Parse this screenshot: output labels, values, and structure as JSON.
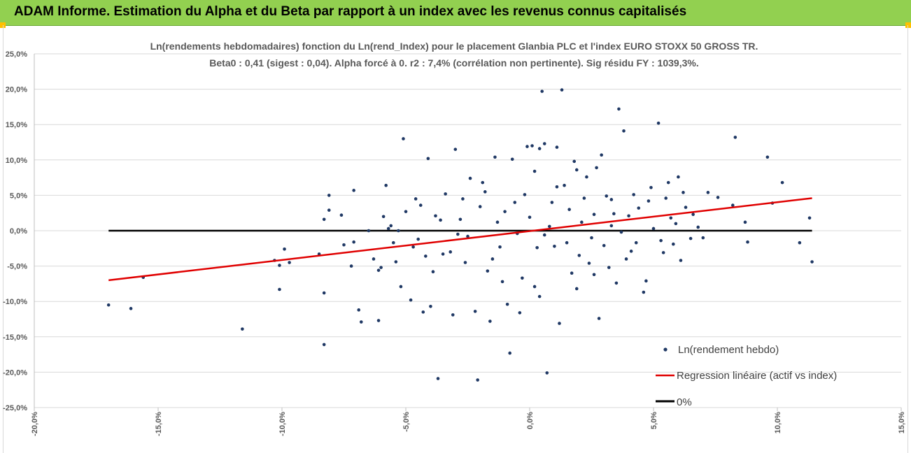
{
  "header": {
    "title": "ADAM Informe. Estimation du Alpha et du Beta par rapport à un index avec les revenus connus capitalisés"
  },
  "colors": {
    "header_bg": "#92d050",
    "points": "#1f3864",
    "regression": "#e00000",
    "zero_line": "#000000",
    "grid": "#d9d9d9"
  },
  "chart_data": {
    "type": "scatter",
    "title": "Ln(rendements hebdomadaires) fonction du Ln(rend_Index) pour le placement Glanbia PLC et l'index EURO STOXX 50 GROSS TR.",
    "subtitle": "Beta0 : 0,41  (sigest : 0,04).  Alpha forcé à 0. r2 : 7,4% (corrélation non pertinente). Sig résidu FY : 1039,3%.",
    "xlim": [
      -0.2,
      0.15
    ],
    "ylim": [
      -0.25,
      0.25
    ],
    "x_ticks": [
      -0.2,
      -0.15,
      -0.1,
      -0.05,
      0.0,
      0.05,
      0.1,
      0.15
    ],
    "x_tick_labels": [
      "-20,0%",
      "-15,0%",
      "-10,0%",
      "-5,0%",
      "0,0%",
      "5,0%",
      "10,0%",
      "15,0%"
    ],
    "y_ticks": [
      0.25,
      0.2,
      0.15,
      0.1,
      0.05,
      0.0,
      -0.05,
      -0.1,
      -0.15,
      -0.2,
      -0.25
    ],
    "y_tick_labels": [
      "25,0%",
      "20,0%",
      "15,0%",
      "10,0%",
      "5,0%",
      "0,0%",
      "-5,0%",
      "-10,0%",
      "-15,0%",
      "-20,0%",
      "-25,0%"
    ],
    "grid": "horizontal",
    "legend_position": "bottom-right",
    "legend": [
      {
        "label": "Ln(rendement hebdo)",
        "kind": "marker"
      },
      {
        "label": "Regression linéaire (actif vs index)",
        "kind": "line"
      },
      {
        "label": "0%",
        "kind": "line"
      }
    ],
    "series": [
      {
        "name": "Ln(rendement hebdo)",
        "type": "scatter",
        "points": [
          [
            -0.17,
            -0.105
          ],
          [
            -0.161,
            -0.11
          ],
          [
            -0.156,
            -0.066
          ],
          [
            -0.116,
            -0.139
          ],
          [
            -0.103,
            -0.042
          ],
          [
            -0.101,
            -0.083
          ],
          [
            -0.101,
            -0.049
          ],
          [
            -0.099,
            -0.026
          ],
          [
            -0.097,
            -0.045
          ],
          [
            -0.085,
            -0.033
          ],
          [
            -0.083,
            0.016
          ],
          [
            -0.083,
            -0.088
          ],
          [
            -0.083,
            -0.161
          ],
          [
            -0.081,
            0.05
          ],
          [
            -0.081,
            0.029
          ],
          [
            -0.076,
            0.022
          ],
          [
            -0.075,
            -0.02
          ],
          [
            -0.072,
            -0.05
          ],
          [
            -0.071,
            0.057
          ],
          [
            -0.071,
            -0.016
          ],
          [
            -0.069,
            -0.112
          ],
          [
            -0.068,
            -0.129
          ],
          [
            -0.065,
            0.0
          ],
          [
            -0.063,
            -0.04
          ],
          [
            -0.061,
            -0.056
          ],
          [
            -0.061,
            -0.127
          ],
          [
            -0.06,
            -0.052
          ],
          [
            -0.059,
            0.02
          ],
          [
            -0.058,
            0.064
          ],
          [
            -0.057,
            0.003
          ],
          [
            -0.056,
            0.007
          ],
          [
            -0.055,
            -0.017
          ],
          [
            -0.054,
            -0.044
          ],
          [
            -0.053,
            0.0
          ],
          [
            -0.052,
            -0.079
          ],
          [
            -0.051,
            0.13
          ],
          [
            -0.05,
            0.027
          ],
          [
            -0.048,
            -0.098
          ],
          [
            -0.047,
            -0.023
          ],
          [
            -0.046,
            0.045
          ],
          [
            -0.045,
            -0.012
          ],
          [
            -0.043,
            -0.115
          ],
          [
            -0.042,
            -0.036
          ],
          [
            -0.041,
            0.102
          ],
          [
            -0.04,
            -0.107
          ],
          [
            -0.038,
            0.021
          ],
          [
            -0.037,
            -0.209
          ],
          [
            -0.036,
            0.015
          ],
          [
            -0.034,
            0.052
          ],
          [
            -0.032,
            -0.03
          ],
          [
            -0.031,
            -0.119
          ],
          [
            -0.03,
            0.115
          ],
          [
            -0.029,
            -0.005
          ],
          [
            -0.028,
            0.016
          ],
          [
            -0.026,
            -0.045
          ],
          [
            -0.024,
            0.074
          ],
          [
            -0.022,
            -0.114
          ],
          [
            -0.021,
            -0.211
          ],
          [
            -0.02,
            0.034
          ],
          [
            -0.019,
            0.068
          ],
          [
            -0.017,
            -0.057
          ],
          [
            -0.016,
            -0.128
          ],
          [
            -0.014,
            0.104
          ],
          [
            -0.012,
            -0.023
          ],
          [
            -0.011,
            -0.072
          ],
          [
            -0.01,
            0.027
          ],
          [
            -0.009,
            -0.104
          ],
          [
            -0.008,
            -0.173
          ],
          [
            -0.007,
            0.101
          ],
          [
            -0.006,
            0.04
          ],
          [
            -0.005,
            -0.004
          ],
          [
            -0.004,
            -0.116
          ],
          [
            -0.003,
            -0.067
          ],
          [
            -0.002,
            0.051
          ],
          [
            -0.001,
            0.119
          ],
          [
            0.0,
            0.019
          ],
          [
            0.001,
            0.12
          ],
          [
            0.002,
            -0.079
          ],
          [
            0.003,
            -0.024
          ],
          [
            0.004,
            0.116
          ],
          [
            0.005,
            0.197
          ],
          [
            0.006,
            0.123
          ],
          [
            0.007,
            -0.201
          ],
          [
            0.008,
            0.006
          ],
          [
            0.009,
            0.04
          ],
          [
            0.01,
            -0.022
          ],
          [
            0.011,
            0.118
          ],
          [
            0.012,
            -0.131
          ],
          [
            0.013,
            0.199
          ],
          [
            0.014,
            0.064
          ],
          [
            0.015,
            -0.017
          ],
          [
            0.016,
            0.03
          ],
          [
            0.017,
            -0.06
          ],
          [
            0.018,
            0.098
          ],
          [
            0.019,
            0.086
          ],
          [
            0.02,
            -0.035
          ],
          [
            0.021,
            0.012
          ],
          [
            0.022,
            0.046
          ],
          [
            0.023,
            0.076
          ],
          [
            0.024,
            -0.046
          ],
          [
            0.025,
            -0.01
          ],
          [
            0.026,
            0.023
          ],
          [
            0.027,
            0.089
          ],
          [
            0.028,
            -0.124
          ],
          [
            0.029,
            0.107
          ],
          [
            0.03,
            -0.021
          ],
          [
            0.031,
            0.049
          ],
          [
            0.032,
            -0.052
          ],
          [
            0.033,
            0.007
          ],
          [
            0.034,
            0.024
          ],
          [
            0.035,
            -0.074
          ],
          [
            0.036,
            0.172
          ],
          [
            0.038,
            0.141
          ],
          [
            0.039,
            -0.04
          ],
          [
            0.04,
            0.021
          ],
          [
            0.042,
            0.051
          ],
          [
            0.043,
            -0.017
          ],
          [
            0.044,
            0.032
          ],
          [
            0.046,
            -0.087
          ],
          [
            0.047,
            -0.071
          ],
          [
            0.048,
            0.042
          ],
          [
            0.05,
            0.003
          ],
          [
            0.052,
            0.152
          ],
          [
            0.053,
            -0.014
          ],
          [
            0.054,
            -0.031
          ],
          [
            0.055,
            0.046
          ],
          [
            0.056,
            0.068
          ],
          [
            0.058,
            -0.019
          ],
          [
            0.059,
            0.01
          ],
          [
            0.06,
            0.076
          ],
          [
            0.062,
            0.054
          ],
          [
            0.063,
            0.033
          ],
          [
            0.065,
            -0.011
          ],
          [
            0.066,
            0.023
          ],
          [
            0.068,
            0.005
          ],
          [
            0.07,
            -0.01
          ],
          [
            0.072,
            0.054
          ],
          [
            0.076,
            0.047
          ],
          [
            0.082,
            0.036
          ],
          [
            0.083,
            0.132
          ],
          [
            0.087,
            0.012
          ],
          [
            0.088,
            -0.016
          ],
          [
            0.096,
            0.104
          ],
          [
            0.098,
            0.039
          ],
          [
            0.102,
            0.068
          ],
          [
            0.109,
            -0.017
          ],
          [
            0.113,
            0.018
          ],
          [
            0.114,
            -0.044
          ],
          [
            -0.044,
            0.036
          ],
          [
            -0.039,
            -0.058
          ],
          [
            -0.035,
            -0.033
          ],
          [
            -0.027,
            0.045
          ],
          [
            -0.025,
            -0.008
          ],
          [
            -0.018,
            0.055
          ],
          [
            -0.015,
            -0.04
          ],
          [
            -0.013,
            0.012
          ],
          [
            0.002,
            0.084
          ],
          [
            0.004,
            -0.093
          ],
          [
            0.006,
            -0.006
          ],
          [
            0.011,
            0.062
          ],
          [
            0.019,
            -0.082
          ],
          [
            0.026,
            -0.062
          ],
          [
            0.033,
            0.044
          ],
          [
            0.037,
            -0.002
          ],
          [
            0.041,
            -0.029
          ],
          [
            0.049,
            0.061
          ],
          [
            0.057,
            0.018
          ],
          [
            0.061,
            -0.042
          ]
        ]
      },
      {
        "name": "Regression linéaire (actif vs index)",
        "type": "line",
        "points": [
          [
            -0.17,
            -0.07
          ],
          [
            0.114,
            0.046
          ]
        ]
      },
      {
        "name": "0%",
        "type": "line",
        "points": [
          [
            -0.17,
            0.0
          ],
          [
            0.114,
            0.0
          ]
        ]
      }
    ]
  }
}
